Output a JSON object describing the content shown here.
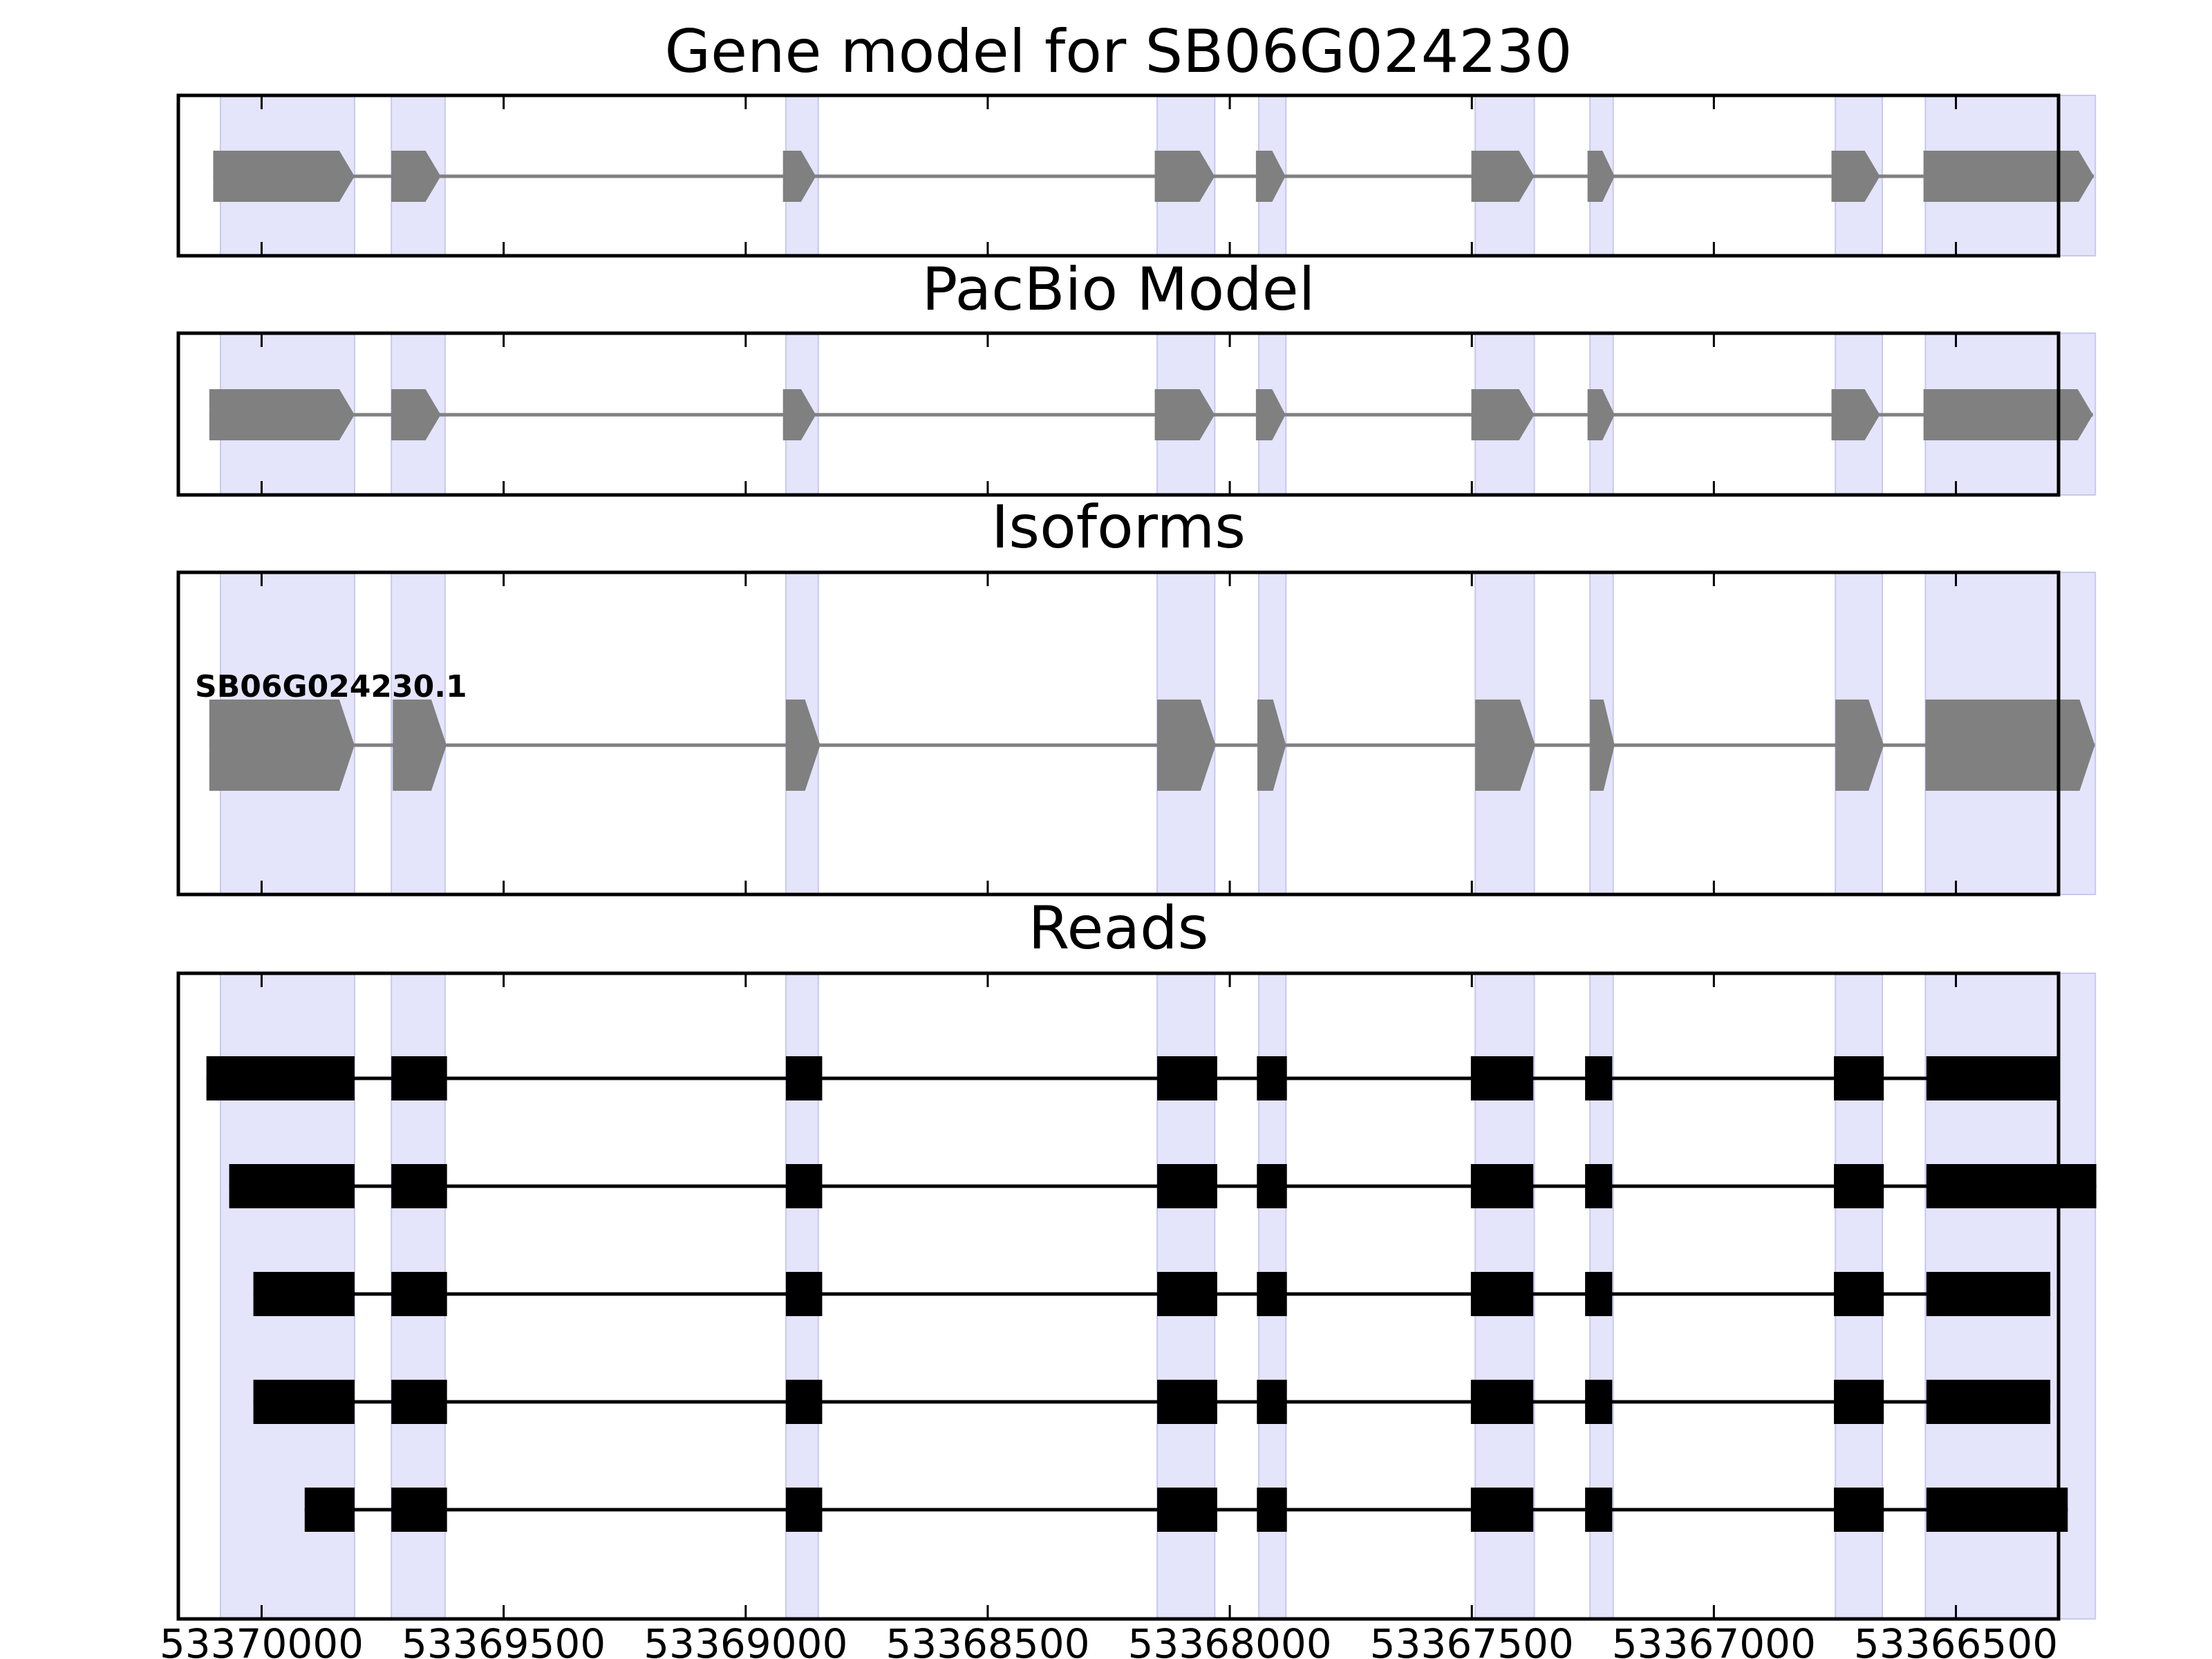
{
  "chart_data": {
    "type": "gene-structure",
    "x_axis": {
      "reversed": true,
      "range": [
        53370172,
        53366288
      ],
      "ticks": [
        {
          "value": 53370000,
          "label": "53370000"
        },
        {
          "value": 53369500,
          "label": "53369500"
        },
        {
          "value": 53369000,
          "label": "53369000"
        },
        {
          "value": 53368500,
          "label": "53368500"
        },
        {
          "value": 53368000,
          "label": "53368000"
        },
        {
          "value": 53367500,
          "label": "53367500"
        },
        {
          "value": 53367000,
          "label": "53367000"
        },
        {
          "value": 53366500,
          "label": "53366500"
        }
      ]
    },
    "highlight_regions": [
      [
        53370085,
        53369808
      ],
      [
        53369732,
        53369621
      ],
      [
        53368917,
        53368850
      ],
      [
        53368150,
        53368031
      ],
      [
        53367940,
        53367884
      ],
      [
        53367493,
        53367371
      ],
      [
        53367256,
        53367208
      ],
      [
        53366749,
        53366652
      ],
      [
        53366563,
        53366212
      ]
    ],
    "colors": {
      "highlight": "#e4e4fb",
      "highlight_edge": "#c8c8f0",
      "model_exon": "#808080",
      "model_intron": "#808080",
      "read": "#000000"
    },
    "panels": [
      {
        "title": "Gene model for SB06G024230",
        "exons": [
          [
            53370100,
            53369808
          ],
          [
            53369732,
            53369630
          ],
          [
            53368923,
            53368855
          ],
          [
            53368155,
            53368031
          ],
          [
            53367946,
            53367885
          ],
          [
            53367501,
            53367371
          ],
          [
            53367261,
            53367205
          ],
          [
            53366757,
            53366657
          ],
          [
            53366567,
            53366215
          ]
        ]
      },
      {
        "title": "PacBio Model",
        "exons": [
          [
            53370108,
            53369808
          ],
          [
            53369732,
            53369630
          ],
          [
            53368923,
            53368855
          ],
          [
            53368155,
            53368031
          ],
          [
            53367946,
            53367885
          ],
          [
            53367501,
            53367371
          ],
          [
            53367261,
            53367205
          ],
          [
            53366757,
            53366657
          ],
          [
            53366567,
            53366217
          ]
        ]
      },
      {
        "title": "Isoforms",
        "isoforms": [
          {
            "name": "SB06G024230.1",
            "exons": [
              [
                53370108,
                53369808
              ],
              [
                53369729,
                53369618
              ],
              [
                53368917,
                53368846
              ],
              [
                53368150,
                53368029
              ],
              [
                53367943,
                53367884
              ],
              [
                53367493,
                53367369
              ],
              [
                53367256,
                53367205
              ],
              [
                53366749,
                53366649
              ],
              [
                53366563,
                53366213
              ]
            ]
          }
        ]
      },
      {
        "title": "Reads",
        "reads": [
          {
            "exons": [
              [
                53370114,
                53369808
              ],
              [
                53369732,
                53369617
              ],
              [
                53368917,
                53368842
              ],
              [
                53368150,
                53368026
              ],
              [
                53367944,
                53367882
              ],
              [
                53367502,
                53367373
              ],
              [
                53367266,
                53367210
              ],
              [
                53366752,
                53366649
              ],
              [
                53366561,
                53366291
              ]
            ]
          },
          {
            "exons": [
              [
                53370067,
                53369808
              ],
              [
                53369732,
                53369617
              ],
              [
                53368917,
                53368842
              ],
              [
                53368150,
                53368026
              ],
              [
                53367944,
                53367882
              ],
              [
                53367502,
                53367373
              ],
              [
                53367266,
                53367210
              ],
              [
                53366752,
                53366649
              ],
              [
                53366561,
                53366210
              ]
            ]
          },
          {
            "exons": [
              [
                53370017,
                53369808
              ],
              [
                53369732,
                53369617
              ],
              [
                53368917,
                53368842
              ],
              [
                53368150,
                53368026
              ],
              [
                53367944,
                53367882
              ],
              [
                53367502,
                53367373
              ],
              [
                53367266,
                53367210
              ],
              [
                53366752,
                53366649
              ],
              [
                53366561,
                53366305
              ]
            ]
          },
          {
            "exons": [
              [
                53370017,
                53369808
              ],
              [
                53369732,
                53369617
              ],
              [
                53368917,
                53368842
              ],
              [
                53368150,
                53368026
              ],
              [
                53367944,
                53367882
              ],
              [
                53367502,
                53367373
              ],
              [
                53367266,
                53367210
              ],
              [
                53366752,
                53366649
              ],
              [
                53366561,
                53366305
              ]
            ]
          },
          {
            "exons": [
              [
                53369911,
                53369808
              ],
              [
                53369732,
                53369617
              ],
              [
                53368917,
                53368842
              ],
              [
                53368150,
                53368026
              ],
              [
                53367944,
                53367882
              ],
              [
                53367502,
                53367373
              ],
              [
                53367266,
                53367210
              ],
              [
                53366752,
                53366649
              ],
              [
                53366561,
                53366269
              ]
            ]
          }
        ]
      }
    ]
  }
}
